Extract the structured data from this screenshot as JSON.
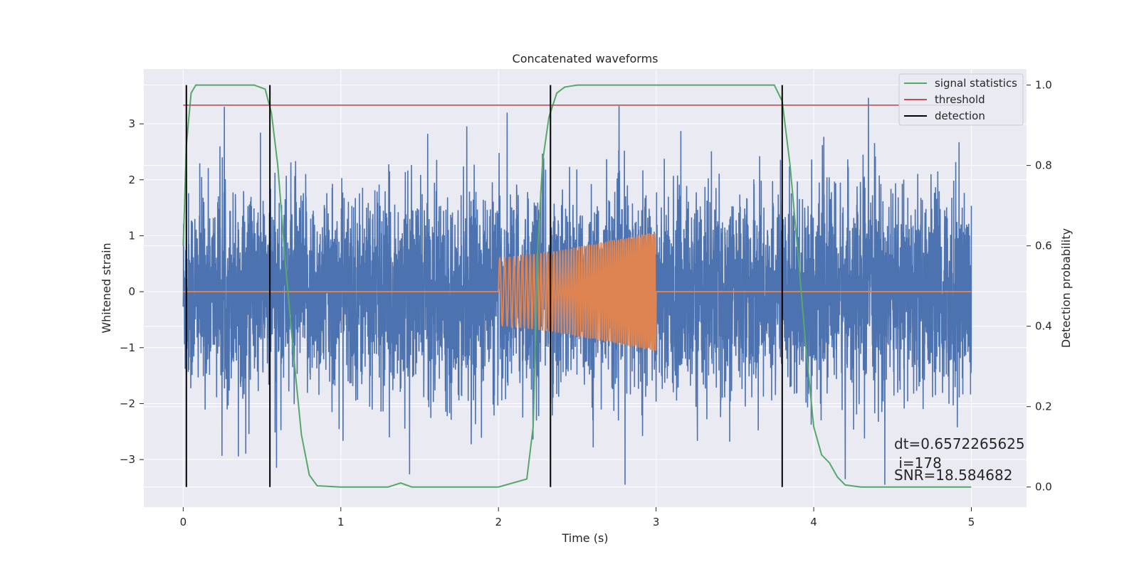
{
  "chart_data": {
    "type": "line",
    "title": "Concatenated waveforms",
    "xlabel": "Time (s)",
    "ylabel_left": "Whitened strain",
    "ylabel_right": "Detection probability",
    "xlim": [
      -0.25,
      5.35
    ],
    "ylim_left": [
      -3.85,
      3.98
    ],
    "ylim_right": [
      -0.05,
      1.04
    ],
    "xticks": [
      0,
      1,
      2,
      3,
      4,
      5
    ],
    "yticks_left": [
      -3,
      -2,
      -1,
      0,
      1,
      2,
      3
    ],
    "yticks_left_labels": [
      "−3",
      "−2",
      "−1",
      "0",
      "1",
      "2",
      "3"
    ],
    "yticks_right": [
      0.0,
      0.2,
      0.4,
      0.6,
      0.8,
      1.0
    ],
    "yticks_right_labels": [
      "0.0",
      "0.2",
      "0.4",
      "0.6",
      "0.8",
      "1.0"
    ],
    "grid": true,
    "legend_placement": "top-right",
    "colors": {
      "strain": "#4c72b0",
      "template": "#dd8452",
      "signal_statistics": "#55a868",
      "threshold": "#c44e52",
      "detection": "#000000",
      "plot_bg": "#eaeaf2",
      "grid": "#ffffff"
    },
    "series": [
      {
        "name": "",
        "axis": "left",
        "description_key": "whitened-strain-noise",
        "x_range": [
          0,
          5
        ],
        "amplitude_typical": 1.4,
        "peak_values": [
          -3.45,
          3.66
        ]
      },
      {
        "name": "",
        "axis": "left",
        "description_key": "injected-chirp",
        "x": [
          0,
          2,
          2.35,
          3,
          3,
          5
        ],
        "envelope": [
          0,
          0.6,
          0.72,
          1.07,
          0,
          0
        ]
      },
      {
        "name": "signal statistics",
        "axis": "right",
        "x": [
          0,
          0.02,
          0.05,
          0.08,
          0.15,
          0.45,
          0.52,
          0.56,
          0.6,
          0.65,
          0.7,
          0.75,
          0.8,
          0.85,
          1.0,
          1.3,
          1.38,
          1.45,
          1.6,
          2.0,
          2.18,
          2.22,
          2.25,
          2.28,
          2.32,
          2.37,
          2.42,
          2.5,
          3.0,
          3.75,
          3.8,
          3.85,
          3.9,
          3.95,
          4.0,
          4.05,
          4.1,
          4.15,
          4.2,
          4.3,
          4.5,
          5.0
        ],
        "values": [
          0.6,
          0.85,
          0.98,
          1.0,
          1.0,
          1.0,
          0.99,
          0.93,
          0.8,
          0.55,
          0.33,
          0.13,
          0.03,
          0.003,
          0.0,
          0.0,
          0.01,
          0.0,
          0.0,
          0.0,
          0.02,
          0.15,
          0.6,
          0.81,
          0.92,
          0.98,
          0.995,
          1.0,
          1.0,
          1.0,
          0.96,
          0.8,
          0.58,
          0.35,
          0.15,
          0.08,
          0.06,
          0.025,
          0.005,
          0.0,
          0.0,
          0.0
        ]
      },
      {
        "name": "threshold",
        "axis": "right",
        "x": [
          0,
          5
        ],
        "values": [
          0.95,
          0.95
        ]
      },
      {
        "name": "detection",
        "axis": "right",
        "vlines_x": [
          0.02,
          0.55,
          2.33,
          3.8
        ],
        "ymin": 0.0,
        "ymax": 1.0
      }
    ],
    "annotations": {
      "line1": "dt=0.6572265625",
      "line2": " i=178",
      "line3": "SNR=18.584682"
    }
  }
}
